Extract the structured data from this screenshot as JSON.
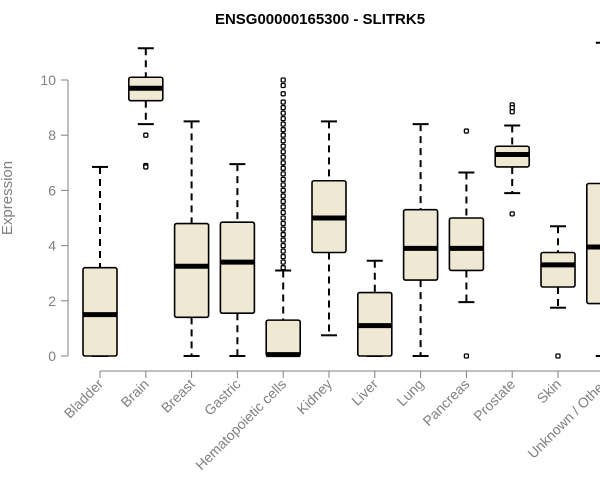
{
  "chart_data": {
    "type": "box",
    "title": "ENSG00000165300 - SLITRK5",
    "xlabel": "",
    "ylabel": "Expression",
    "ylim": [
      0,
      11.3
    ],
    "yticks": [
      0,
      2,
      4,
      6,
      8,
      10
    ],
    "colors": {
      "box_fill": "#efe8d2",
      "stroke": "#000000",
      "axis": "#808080"
    },
    "categories": [
      "Bladder",
      "Brain",
      "Breast",
      "Gastric",
      "Hematopoietic cells",
      "Kidney",
      "Liver",
      "Lung",
      "Pancreas",
      "Prostate",
      "Skin",
      "Unknown / Other"
    ],
    "boxes": [
      {
        "min": 0.0,
        "q1": 0.0,
        "median": 1.5,
        "q3": 3.2,
        "max": 6.85,
        "outliers": []
      },
      {
        "min": 8.4,
        "q1": 9.25,
        "median": 9.7,
        "q3": 10.1,
        "max": 11.15,
        "outliers": [
          8.0,
          6.9,
          6.85
        ]
      },
      {
        "min": 0.0,
        "q1": 1.4,
        "median": 3.25,
        "q3": 4.8,
        "max": 8.5,
        "outliers": []
      },
      {
        "min": 0.0,
        "q1": 1.55,
        "median": 3.4,
        "q3": 4.85,
        "max": 6.95,
        "outliers": []
      },
      {
        "min": 0.0,
        "q1": 0.0,
        "median": 0.05,
        "q3": 1.3,
        "max": 3.1,
        "outliers": [
          3.2,
          3.4,
          3.6,
          3.8,
          4.0,
          4.2,
          4.4,
          4.6,
          4.8,
          5.0,
          5.2,
          5.4,
          5.6,
          5.8,
          6.0,
          6.2,
          6.4,
          6.6,
          6.8,
          7.0,
          7.2,
          7.4,
          7.6,
          7.8,
          8.0,
          8.2,
          8.4,
          8.6,
          8.8,
          9.0,
          9.2,
          9.5,
          9.8,
          10.0
        ]
      },
      {
        "min": 0.75,
        "q1": 3.75,
        "median": 5.0,
        "q3": 6.35,
        "max": 8.5,
        "outliers": []
      },
      {
        "min": 0.0,
        "q1": 0.0,
        "median": 1.1,
        "q3": 2.3,
        "max": 3.45,
        "outliers": []
      },
      {
        "min": 0.0,
        "q1": 2.75,
        "median": 3.9,
        "q3": 5.3,
        "max": 8.4,
        "outliers": []
      },
      {
        "min": 1.95,
        "q1": 3.1,
        "median": 3.9,
        "q3": 5.0,
        "max": 6.65,
        "outliers": [
          8.15,
          0.0
        ]
      },
      {
        "min": 5.9,
        "q1": 6.85,
        "median": 7.3,
        "q3": 7.6,
        "max": 8.35,
        "outliers": [
          9.1,
          9.0,
          8.85,
          5.15
        ]
      },
      {
        "min": 1.75,
        "q1": 2.5,
        "median": 3.3,
        "q3": 3.75,
        "max": 4.7,
        "outliers": [
          0.0
        ]
      },
      {
        "min": 0.0,
        "q1": 1.9,
        "median": 3.95,
        "q3": 6.25,
        "max": 11.35,
        "outliers": []
      }
    ]
  }
}
